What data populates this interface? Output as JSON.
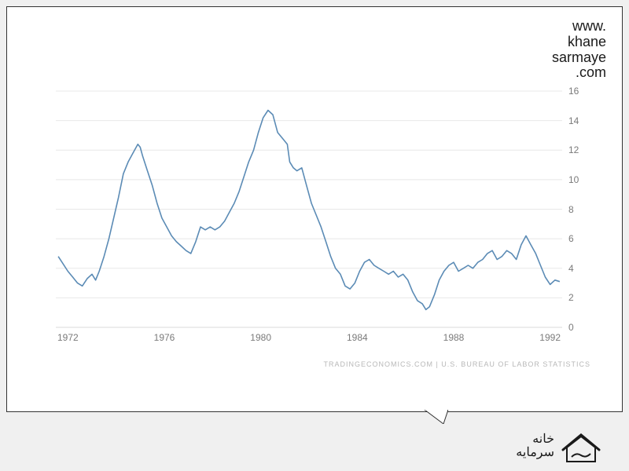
{
  "watermark": {
    "line1": "www.",
    "line2": "khane",
    "line3": "sarmaye",
    "line4": ".com",
    "fontsize": 18,
    "color": "#1a1a1a"
  },
  "chart": {
    "type": "line",
    "x_range": [
      1971.5,
      1992.5
    ],
    "y_range": [
      0,
      16
    ],
    "x_ticks": [
      1972,
      1976,
      1980,
      1984,
      1988,
      1992
    ],
    "y_ticks": [
      0,
      2,
      4,
      6,
      8,
      10,
      12,
      14,
      16
    ],
    "y_tick_side": "right",
    "line_color": "#5b8bb5",
    "line_width": 1.6,
    "grid_color": "#e8e8e8",
    "grid_width": 1,
    "axis_color": "#d8d8d8",
    "background_color": "#ffffff",
    "tick_label_color": "#7a7a7a",
    "tick_label_fontsize": 12,
    "series": [
      {
        "x": 1971.6,
        "y": 4.8
      },
      {
        "x": 1971.8,
        "y": 4.3
      },
      {
        "x": 1972.0,
        "y": 3.8
      },
      {
        "x": 1972.2,
        "y": 3.4
      },
      {
        "x": 1972.4,
        "y": 3.0
      },
      {
        "x": 1972.6,
        "y": 2.8
      },
      {
        "x": 1972.8,
        "y": 3.3
      },
      {
        "x": 1973.0,
        "y": 3.6
      },
      {
        "x": 1973.15,
        "y": 3.2
      },
      {
        "x": 1973.3,
        "y": 3.8
      },
      {
        "x": 1973.5,
        "y": 4.8
      },
      {
        "x": 1973.7,
        "y": 6.0
      },
      {
        "x": 1973.9,
        "y": 7.4
      },
      {
        "x": 1974.1,
        "y": 8.8
      },
      {
        "x": 1974.3,
        "y": 10.4
      },
      {
        "x": 1974.5,
        "y": 11.2
      },
      {
        "x": 1974.7,
        "y": 11.8
      },
      {
        "x": 1974.9,
        "y": 12.4
      },
      {
        "x": 1975.0,
        "y": 12.2
      },
      {
        "x": 1975.1,
        "y": 11.6
      },
      {
        "x": 1975.3,
        "y": 10.6
      },
      {
        "x": 1975.5,
        "y": 9.6
      },
      {
        "x": 1975.7,
        "y": 8.4
      },
      {
        "x": 1975.9,
        "y": 7.4
      },
      {
        "x": 1976.1,
        "y": 6.8
      },
      {
        "x": 1976.3,
        "y": 6.2
      },
      {
        "x": 1976.5,
        "y": 5.8
      },
      {
        "x": 1976.7,
        "y": 5.5
      },
      {
        "x": 1976.9,
        "y": 5.2
      },
      {
        "x": 1977.1,
        "y": 5.0
      },
      {
        "x": 1977.3,
        "y": 5.8
      },
      {
        "x": 1977.5,
        "y": 6.8
      },
      {
        "x": 1977.7,
        "y": 6.6
      },
      {
        "x": 1977.9,
        "y": 6.8
      },
      {
        "x": 1978.1,
        "y": 6.6
      },
      {
        "x": 1978.3,
        "y": 6.8
      },
      {
        "x": 1978.5,
        "y": 7.2
      },
      {
        "x": 1978.7,
        "y": 7.8
      },
      {
        "x": 1978.9,
        "y": 8.4
      },
      {
        "x": 1979.1,
        "y": 9.2
      },
      {
        "x": 1979.3,
        "y": 10.2
      },
      {
        "x": 1979.5,
        "y": 11.2
      },
      {
        "x": 1979.7,
        "y": 12.0
      },
      {
        "x": 1979.9,
        "y": 13.2
      },
      {
        "x": 1980.1,
        "y": 14.2
      },
      {
        "x": 1980.3,
        "y": 14.7
      },
      {
        "x": 1980.5,
        "y": 14.4
      },
      {
        "x": 1980.7,
        "y": 13.2
      },
      {
        "x": 1980.9,
        "y": 12.8
      },
      {
        "x": 1981.1,
        "y": 12.4
      },
      {
        "x": 1981.2,
        "y": 11.2
      },
      {
        "x": 1981.35,
        "y": 10.8
      },
      {
        "x": 1981.5,
        "y": 10.6
      },
      {
        "x": 1981.7,
        "y": 10.8
      },
      {
        "x": 1981.9,
        "y": 9.6
      },
      {
        "x": 1982.1,
        "y": 8.4
      },
      {
        "x": 1982.3,
        "y": 7.6
      },
      {
        "x": 1982.5,
        "y": 6.8
      },
      {
        "x": 1982.7,
        "y": 5.8
      },
      {
        "x": 1982.9,
        "y": 4.8
      },
      {
        "x": 1983.1,
        "y": 4.0
      },
      {
        "x": 1983.3,
        "y": 3.6
      },
      {
        "x": 1983.5,
        "y": 2.8
      },
      {
        "x": 1983.7,
        "y": 2.6
      },
      {
        "x": 1983.9,
        "y": 3.0
      },
      {
        "x": 1984.1,
        "y": 3.8
      },
      {
        "x": 1984.3,
        "y": 4.4
      },
      {
        "x": 1984.5,
        "y": 4.6
      },
      {
        "x": 1984.7,
        "y": 4.2
      },
      {
        "x": 1984.9,
        "y": 4.0
      },
      {
        "x": 1985.1,
        "y": 3.8
      },
      {
        "x": 1985.3,
        "y": 3.6
      },
      {
        "x": 1985.5,
        "y": 3.8
      },
      {
        "x": 1985.7,
        "y": 3.4
      },
      {
        "x": 1985.9,
        "y": 3.6
      },
      {
        "x": 1986.1,
        "y": 3.2
      },
      {
        "x": 1986.3,
        "y": 2.4
      },
      {
        "x": 1986.5,
        "y": 1.8
      },
      {
        "x": 1986.7,
        "y": 1.6
      },
      {
        "x": 1986.85,
        "y": 1.2
      },
      {
        "x": 1987.0,
        "y": 1.4
      },
      {
        "x": 1987.2,
        "y": 2.2
      },
      {
        "x": 1987.4,
        "y": 3.2
      },
      {
        "x": 1987.6,
        "y": 3.8
      },
      {
        "x": 1987.8,
        "y": 4.2
      },
      {
        "x": 1988.0,
        "y": 4.4
      },
      {
        "x": 1988.2,
        "y": 3.8
      },
      {
        "x": 1988.4,
        "y": 4.0
      },
      {
        "x": 1988.6,
        "y": 4.2
      },
      {
        "x": 1988.8,
        "y": 4.0
      },
      {
        "x": 1989.0,
        "y": 4.4
      },
      {
        "x": 1989.2,
        "y": 4.6
      },
      {
        "x": 1989.4,
        "y": 5.0
      },
      {
        "x": 1989.6,
        "y": 5.2
      },
      {
        "x": 1989.8,
        "y": 4.6
      },
      {
        "x": 1990.0,
        "y": 4.8
      },
      {
        "x": 1990.2,
        "y": 5.2
      },
      {
        "x": 1990.4,
        "y": 5.0
      },
      {
        "x": 1990.6,
        "y": 4.6
      },
      {
        "x": 1990.8,
        "y": 5.6
      },
      {
        "x": 1991.0,
        "y": 6.2
      },
      {
        "x": 1991.2,
        "y": 5.6
      },
      {
        "x": 1991.4,
        "y": 5.0
      },
      {
        "x": 1991.6,
        "y": 4.2
      },
      {
        "x": 1991.8,
        "y": 3.4
      },
      {
        "x": 1992.0,
        "y": 2.9
      },
      {
        "x": 1992.2,
        "y": 3.2
      },
      {
        "x": 1992.4,
        "y": 3.1
      }
    ]
  },
  "attribution": {
    "text": "TRADINGECONOMICS.COM  |  U.S. BUREAU OF LABOR STATISTICS",
    "color": "#b8b8b8",
    "fontsize": 9
  },
  "logo": {
    "line1": "خانه",
    "line2": "سرمایه",
    "color": "#1a1a1a",
    "fontsize": 16
  },
  "frame": {
    "border_color": "#333333",
    "background": "#ffffff",
    "page_background": "#f0f0f0"
  }
}
